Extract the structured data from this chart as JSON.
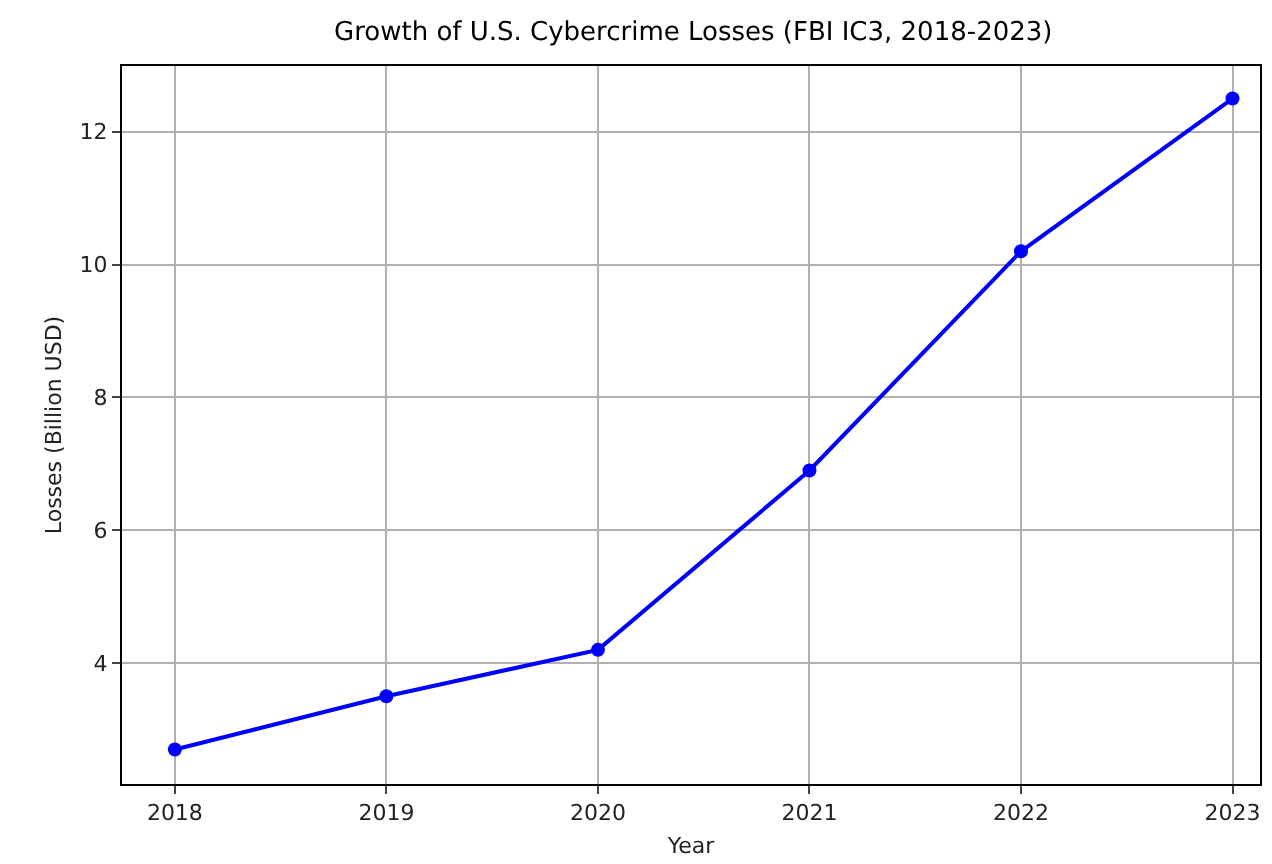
{
  "chart_data": {
    "type": "line",
    "title": "Growth of U.S. Cybercrime Losses (FBI IC3, 2018-2023)",
    "xlabel": "Year",
    "ylabel": "Losses (Billion USD)",
    "x": [
      2018,
      2019,
      2020,
      2021,
      2022,
      2023
    ],
    "series": [
      {
        "color": "#0000ff",
        "values": [
          2.7,
          3.5,
          4.2,
          6.9,
          10.2,
          12.5
        ]
      }
    ],
    "xlim": [
      2017.75,
      2023.13
    ],
    "xticks": [
      2018,
      2019,
      2020,
      2021,
      2022,
      2023
    ],
    "ylim": [
      2.18,
      12.99
    ],
    "yticks": [
      4,
      6,
      8,
      10,
      12
    ],
    "grid": true,
    "marker": "circle",
    "line_style": "solid"
  }
}
